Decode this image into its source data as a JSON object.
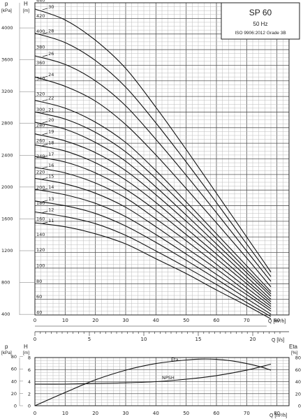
{
  "chart_data": [
    {
      "type": "line",
      "title": "SP 60",
      "subtitle_freq": "50 Hz",
      "subtitle_std": "ISO 9906:2012 Grade 3B",
      "left_axis_unit_top": "p",
      "left_axis_unit_bottom": "[kPa]",
      "right_axis_unit_top": "H",
      "right_axis_unit_bottom": "[m]",
      "x_label_m3h": "Q [m³/h]",
      "x_label_ls": "Q [l/s]",
      "xlim_m3h": [
        0,
        84
      ],
      "ylim_m": [
        40,
        440
      ],
      "x_ticks_m3h": [
        0,
        10,
        20,
        30,
        40,
        50,
        60,
        70,
        80
      ],
      "x_ticks_ls": [
        0,
        5,
        10,
        15,
        20
      ],
      "y_ticks_m": [
        40,
        60,
        80,
        100,
        120,
        140,
        160,
        180,
        200,
        220,
        240,
        260,
        280,
        300,
        320,
        340,
        360,
        380,
        400,
        420,
        440
      ],
      "y_ticks_kpa": [
        400,
        800,
        1200,
        1600,
        2000,
        2400,
        2800,
        3200,
        3600,
        4000
      ],
      "x_points": [
        0,
        10,
        20,
        30,
        40,
        50,
        60,
        70,
        78
      ],
      "series": [
        {
          "name": "30",
          "values": [
            432,
            418,
            392,
            356,
            306,
            252,
            196,
            140,
            95
          ]
        },
        {
          "name": "28",
          "values": [
            401,
            389,
            366,
            332,
            286,
            236,
            184,
            131,
            89
          ]
        },
        {
          "name": "26",
          "values": [
            372,
            361,
            340,
            308,
            265,
            219,
            171,
            122,
            83
          ]
        },
        {
          "name": "24",
          "values": [
            345,
            333,
            314,
            284,
            245,
            202,
            158,
            113,
            76
          ]
        },
        {
          "name": "22",
          "values": [
            315,
            305,
            287,
            261,
            225,
            185,
            144,
            103,
            70
          ]
        },
        {
          "name": "21",
          "values": [
            300,
            291,
            274,
            249,
            215,
            177,
            138,
            98,
            67
          ]
        },
        {
          "name": "20",
          "values": [
            287,
            278,
            261,
            237,
            204,
            168,
            131,
            94,
            64
          ]
        },
        {
          "name": "19",
          "values": [
            272,
            263,
            248,
            225,
            194,
            160,
            125,
            89,
            60
          ]
        },
        {
          "name": "18",
          "values": [
            258,
            250,
            235,
            213,
            184,
            151,
            118,
            84,
            57
          ]
        },
        {
          "name": "17",
          "values": [
            243,
            236,
            222,
            201,
            174,
            143,
            112,
            80,
            54
          ]
        },
        {
          "name": "16",
          "values": [
            229,
            222,
            209,
            190,
            163,
            135,
            105,
            75,
            51
          ]
        },
        {
          "name": "15",
          "values": [
            215,
            208,
            196,
            178,
            153,
            126,
            99,
            70,
            48
          ]
        },
        {
          "name": "14",
          "values": [
            201,
            194,
            183,
            166,
            143,
            118,
            92,
            66,
            45
          ]
        },
        {
          "name": "13",
          "values": [
            186,
            180,
            170,
            154,
            133,
            110,
            86,
            61,
            41
          ]
        },
        {
          "name": "12",
          "values": [
            172,
            166,
            157,
            142,
            122,
            101,
            79,
            56,
            38
          ]
        },
        {
          "name": "11",
          "values": [
            158,
            153,
            144,
            131,
            112,
            93,
            72,
            52,
            35
          ]
        }
      ]
    },
    {
      "type": "line",
      "left_axis_unit_top": "p",
      "left_axis_unit_bottom": "[kPa]",
      "h_axis_unit_top": "H",
      "h_axis_unit_bottom": "[m]",
      "right_axis_unit_top": "Eta",
      "right_axis_unit_bottom": "[%]",
      "x_label": "Q [m³/h]",
      "xlim": [
        0,
        84
      ],
      "ylim_m": [
        0,
        8
      ],
      "ylim_eta": [
        0,
        80
      ],
      "x_ticks": [
        0,
        10,
        20,
        30,
        40,
        50,
        60,
        70,
        80
      ],
      "y_ticks_m": [
        0,
        2,
        4,
        6,
        8
      ],
      "y_ticks_kpa": [
        0,
        20,
        40,
        60,
        80
      ],
      "y_ticks_eta": [
        0,
        20,
        40,
        60,
        80
      ],
      "series": [
        {
          "name": "Eta",
          "axis": "eta",
          "x": [
            0,
            10,
            20,
            30,
            40,
            50,
            55,
            60,
            65,
            70,
            75,
            78
          ],
          "values": [
            0,
            22,
            43,
            59,
            70,
            76,
            77.5,
            77,
            74.5,
            70,
            64,
            59
          ]
        },
        {
          "name": "NPSH",
          "axis": "m",
          "x": [
            0,
            10,
            20,
            30,
            40,
            50,
            60,
            70,
            78
          ],
          "values": [
            3.6,
            3.6,
            3.7,
            3.8,
            4.0,
            4.4,
            5.0,
            5.9,
            6.9
          ]
        }
      ]
    }
  ]
}
